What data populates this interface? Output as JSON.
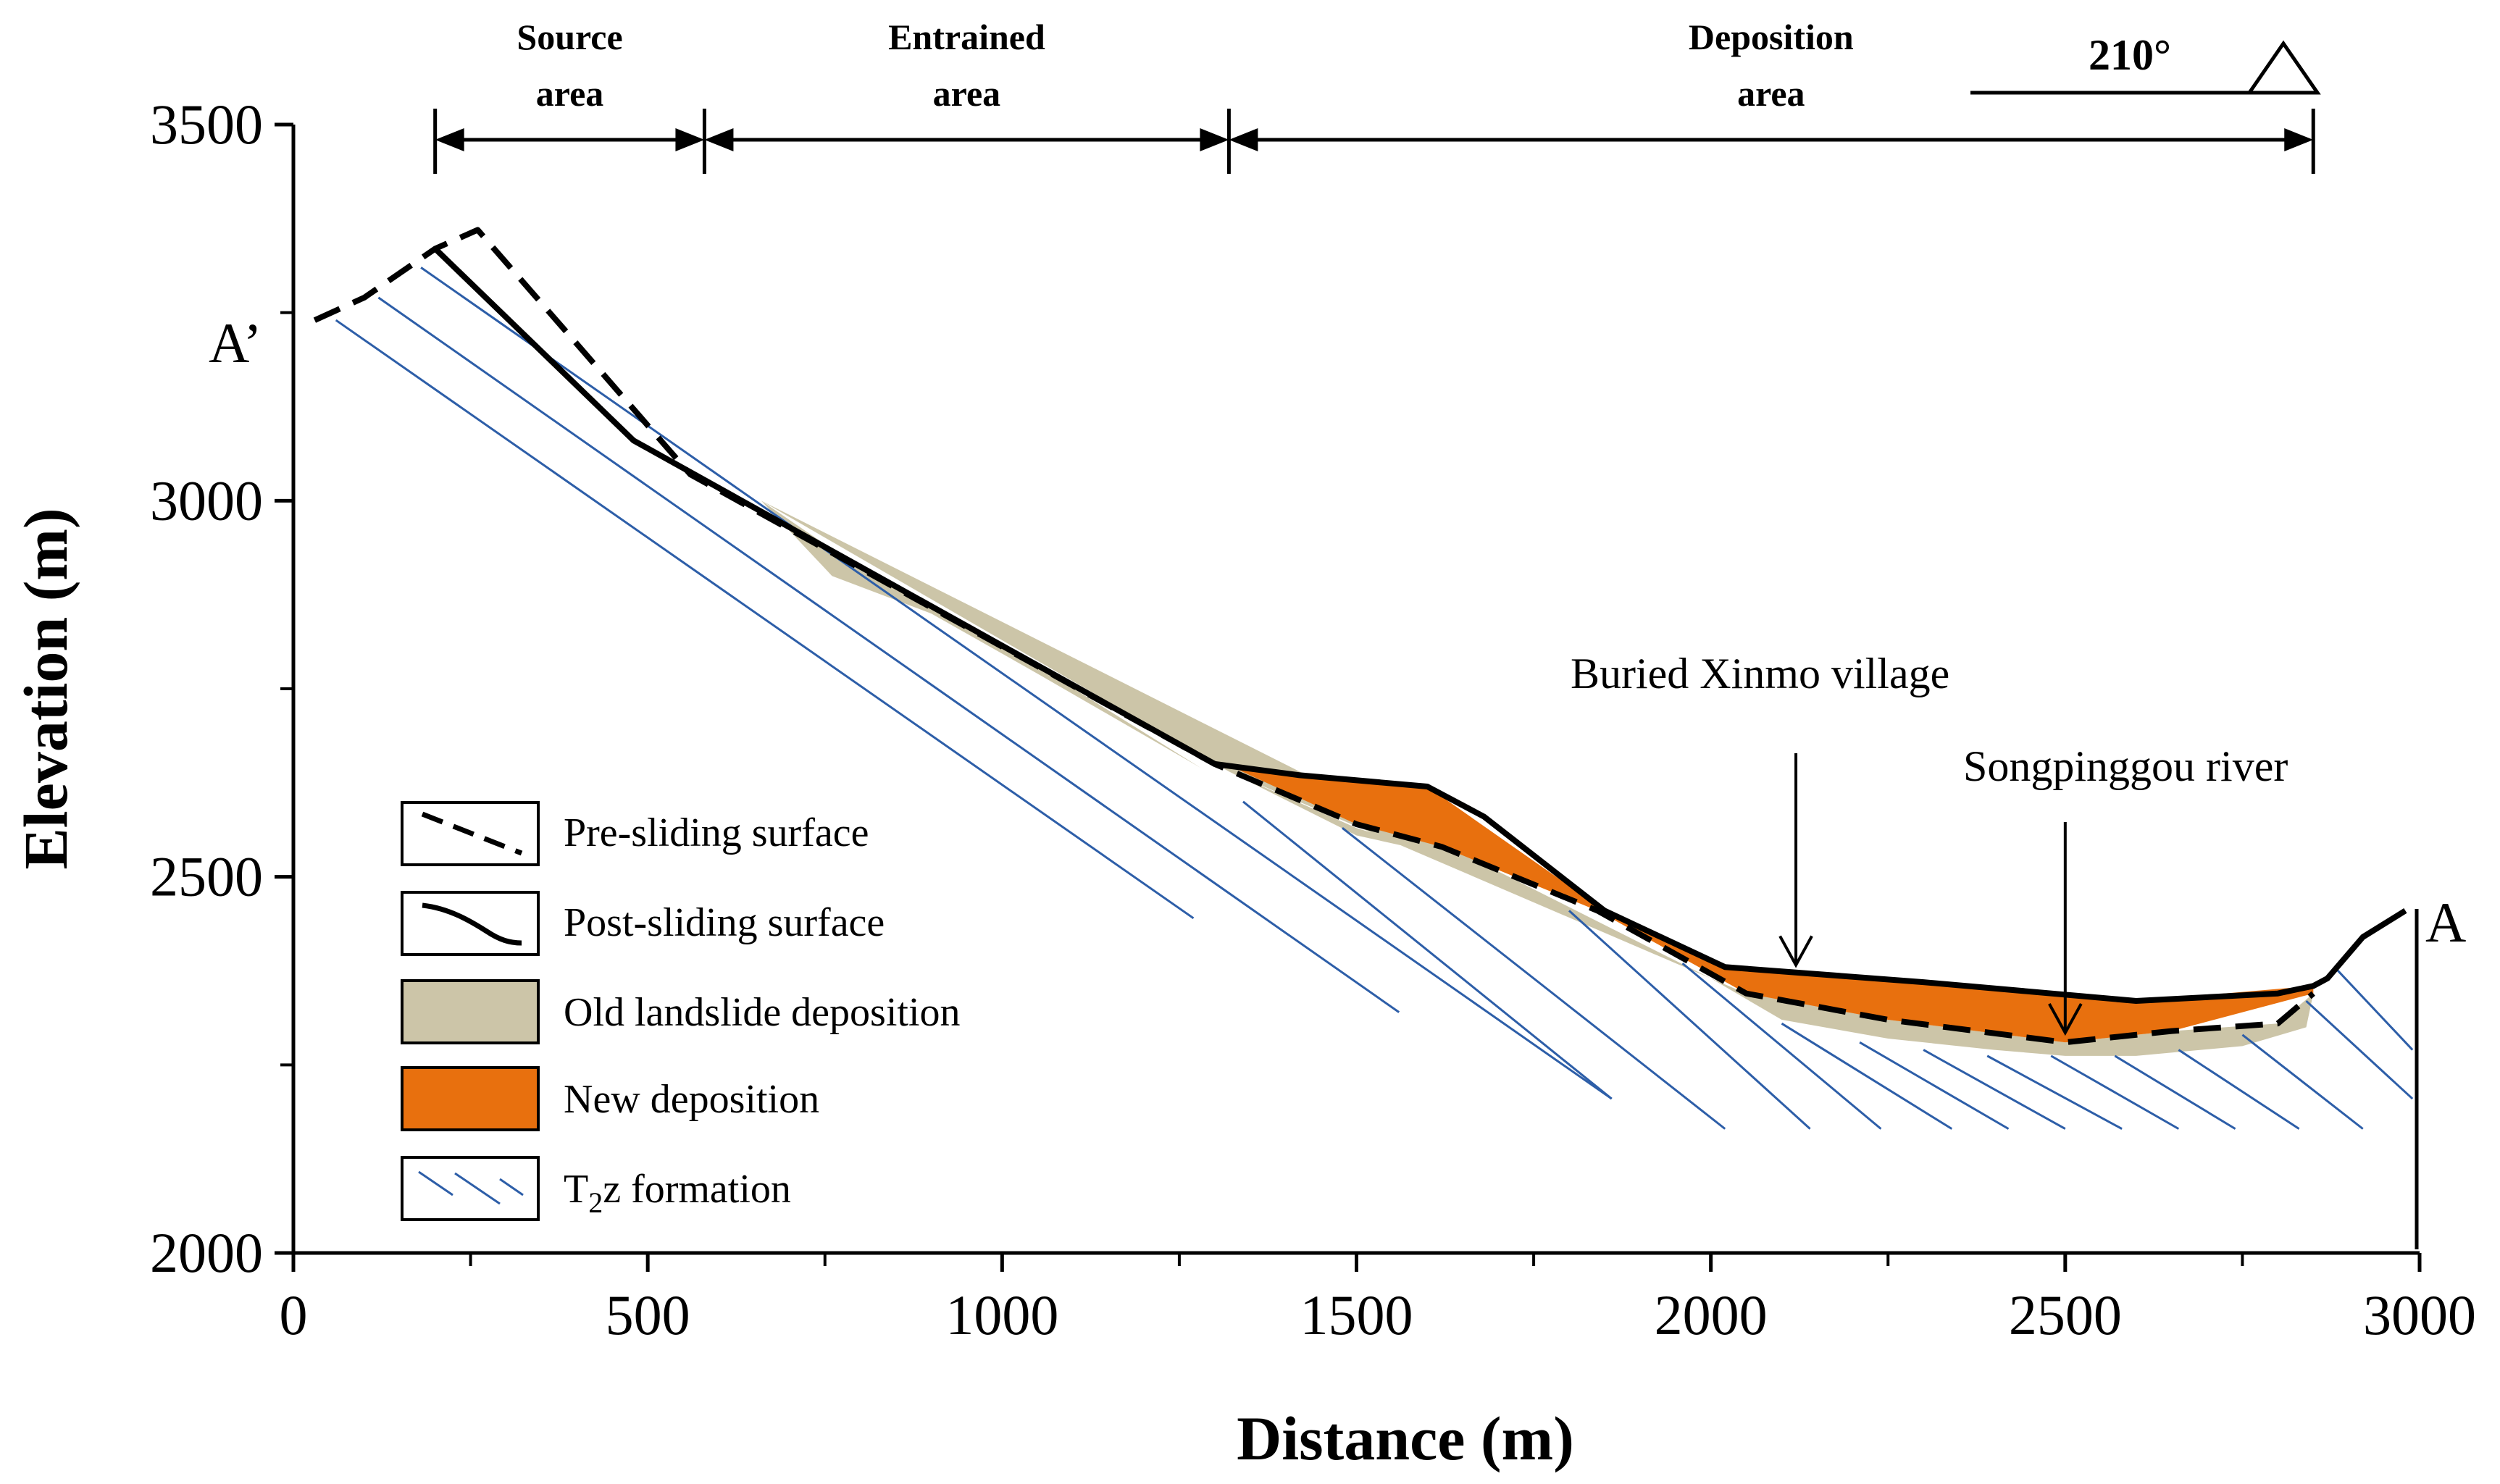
{
  "chart_data": {
    "type": "cross-section profile",
    "xlabel": "Distance (m)",
    "ylabel": "Elevation (m)",
    "xlim": [
      0,
      3000
    ],
    "ylim": [
      2000,
      3500
    ],
    "x_ticks": [
      "0",
      "500",
      "1000",
      "1500",
      "2000",
      "2500",
      "3000"
    ],
    "y_ticks": [
      "2000",
      "2500",
      "3000",
      "3500"
    ],
    "endpoints": {
      "left": "A’",
      "right": "A"
    },
    "orientation": {
      "label": "210°"
    },
    "zones": [
      {
        "line1": "Source",
        "line2": "area",
        "from": 200,
        "to": 580
      },
      {
        "line1": "Entrained",
        "line2": "area",
        "from": 580,
        "to": 1320
      },
      {
        "line1": "Deposition",
        "line2": "area",
        "from": 1320,
        "to": 2850
      }
    ],
    "annotations": [
      {
        "text": "Buried  Xinmo village",
        "x": 2120,
        "y": 2375
      },
      {
        "text": "Songpinggou river",
        "x": 2500,
        "y": 2285
      }
    ],
    "series": [
      {
        "name": "Post-sliding surface",
        "style": "solid",
        "points": [
          [
            200,
            3335
          ],
          [
            480,
            3080
          ],
          [
            1300,
            2650
          ],
          [
            1420,
            2635
          ],
          [
            1600,
            2620
          ],
          [
            1680,
            2580
          ],
          [
            1850,
            2455
          ],
          [
            2020,
            2380
          ],
          [
            2300,
            2360
          ],
          [
            2600,
            2335
          ],
          [
            2800,
            2345
          ],
          [
            2850,
            2355
          ],
          [
            2870,
            2365
          ],
          [
            2920,
            2420
          ],
          [
            2980,
            2455
          ]
        ]
      },
      {
        "name": "Pre-sliding surface",
        "style": "dashed",
        "points": [
          [
            30,
            3240
          ],
          [
            100,
            3270
          ],
          [
            200,
            3335
          ],
          [
            260,
            3360
          ],
          [
            560,
            3035
          ],
          [
            800,
            2910
          ],
          [
            1050,
            2780
          ],
          [
            1300,
            2650
          ],
          [
            1500,
            2570
          ],
          [
            1620,
            2540
          ],
          [
            1840,
            2455
          ],
          [
            2050,
            2345
          ],
          [
            2250,
            2310
          ],
          [
            2500,
            2280
          ],
          [
            2650,
            2295
          ],
          [
            2800,
            2305
          ],
          [
            2850,
            2345
          ]
        ]
      },
      {
        "name": "Old landslide deposition",
        "style": "fill",
        "color": "#ccc5a8",
        "points": [
          [
            660,
            3000
          ],
          [
            760,
            2900
          ],
          [
            900,
            2850
          ],
          [
            1050,
            2770
          ],
          [
            1280,
            2645
          ],
          [
            1050,
            2780
          ],
          [
            800,
            2910
          ],
          [
            660,
            3000
          ],
          [
            1320,
            2640
          ],
          [
            1500,
            2555
          ],
          [
            1620,
            2530
          ],
          [
            1500,
            2565
          ],
          [
            1320,
            2640
          ],
          [
            2000,
            2365
          ],
          [
            2100,
            2310
          ],
          [
            2250,
            2285
          ],
          [
            2400,
            2270
          ],
          [
            2500,
            2262
          ],
          [
            2600,
            2262
          ],
          [
            2750,
            2275
          ],
          [
            2840,
            2300
          ],
          [
            2850,
            2345
          ],
          [
            2800,
            2305
          ],
          [
            2650,
            2295
          ],
          [
            2500,
            2280
          ],
          [
            2250,
            2310
          ],
          [
            2050,
            2345
          ],
          [
            2000,
            2365
          ]
        ]
      },
      {
        "name": "New deposition",
        "style": "fill",
        "color": "#e8700e",
        "points": [
          [
            1320,
            2648
          ],
          [
            1600,
            2620
          ],
          [
            1850,
            2455
          ],
          [
            2020,
            2380
          ],
          [
            2600,
            2335
          ],
          [
            2850,
            2355
          ],
          [
            2850,
            2345
          ],
          [
            2650,
            2295
          ],
          [
            2500,
            2280
          ],
          [
            2250,
            2310
          ],
          [
            2050,
            2345
          ],
          [
            1840,
            2455
          ],
          [
            1620,
            2540
          ],
          [
            1500,
            2570
          ]
        ]
      }
    ],
    "legend": [
      {
        "key": "pre",
        "label": "Pre-sliding surface"
      },
      {
        "key": "post",
        "label": "Post-sliding surface"
      },
      {
        "key": "old",
        "label": "Old landslide deposition"
      },
      {
        "key": "new",
        "label": "New deposition"
      },
      {
        "key": "t2z",
        "label_main": "T",
        "label_sub": "2",
        "label_rest": "z formation"
      }
    ],
    "colors": {
      "old_deposition": "#ccc5a8",
      "new_deposition": "#e8700e",
      "hatch": "#2d5ea8",
      "line": "#000000"
    }
  }
}
